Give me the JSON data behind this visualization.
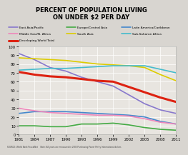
{
  "title_line1": "PERCENT OF POPULATION LIVING",
  "title_line2": "ON UNDER $2 PER DAY",
  "background_color": "#d8d5d0",
  "plot_bg_color": "#e8e5e0",
  "years": [
    1981,
    1984,
    1987,
    1990,
    1993,
    1996,
    1999,
    2002,
    2005,
    2008,
    2011
  ],
  "series": {
    "East Asia/Pacific": {
      "color": "#8878cc",
      "data": [
        92,
        85,
        76,
        72,
        65,
        60,
        55,
        45,
        35,
        28,
        24
      ],
      "linewidth": 1.2
    },
    "Europe/Central Asia": {
      "color": "#44aa44",
      "data": [
        10,
        10,
        9,
        9,
        12,
        12,
        13,
        11,
        8,
        6,
        5
      ],
      "linewidth": 1.2
    },
    "Latin America/Caribbean": {
      "color": "#4488cc",
      "data": [
        24,
        26,
        26,
        26,
        25,
        24,
        23,
        22,
        20,
        15,
        12
      ],
      "linewidth": 1.2
    },
    "Middle East/N. Africa": {
      "color": "#ee88bb",
      "data": [
        30,
        27,
        25,
        24,
        23,
        22,
        22,
        21,
        18,
        14,
        12
      ],
      "linewidth": 1.2
    },
    "South Asia": {
      "color": "#ddcc00",
      "data": [
        87,
        86,
        85,
        84,
        82,
        80,
        79,
        78,
        76,
        68,
        61
      ],
      "linewidth": 1.2
    },
    "Sub-Saharan Africa": {
      "color": "#44bbcc",
      "data": [
        73,
        74,
        75,
        75,
        76,
        77,
        78,
        78,
        78,
        74,
        70
      ],
      "linewidth": 1.2
    },
    "Developing World Total": {
      "color": "#dd2211",
      "data": [
        71,
        68,
        66,
        65,
        63,
        61,
        60,
        54,
        48,
        42,
        37
      ],
      "linewidth": 2.2
    }
  },
  "xlim": [
    1981,
    2011
  ],
  "ylim": [
    0,
    100
  ],
  "yticks": [
    0,
    10,
    20,
    30,
    40,
    50,
    60,
    70,
    80,
    90,
    100
  ],
  "xticks": [
    1981,
    1984,
    1987,
    1990,
    1993,
    1996,
    1999,
    2002,
    2005,
    2008,
    2011
  ],
  "source_text": "SOURCE: World Bank PovcalNet    Note: All years are measured in 2005 Purchasing Power Parity International dollars",
  "legend_layout": [
    [
      "East Asia/Pacific",
      "Europe/Central Asia",
      "Latin America/Caribbean"
    ],
    [
      "Middle East/N. Africa",
      "South Asia",
      "Sub-Saharan Africa"
    ],
    [
      "Developing World Total"
    ]
  ]
}
